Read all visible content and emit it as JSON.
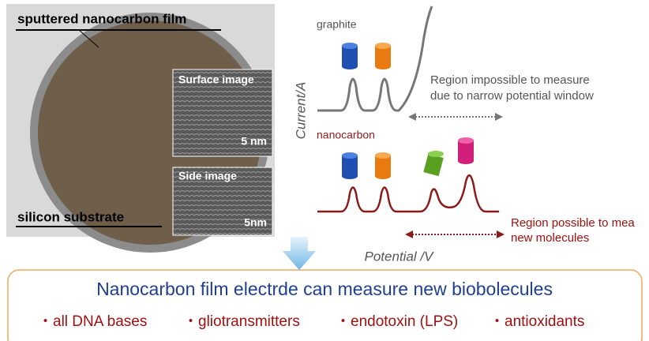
{
  "photo": {
    "film_label": "sputtered nanocarbon film",
    "surface_label": "Surface image",
    "surface_scale": "5 nm",
    "side_label": "Side image",
    "side_scale": "5nm",
    "substrate_label": "silicon substrate"
  },
  "voltammogram": {
    "graphite_label": "graphite",
    "y_axis_label": "Current/A",
    "impossible_note": [
      "Region impossible to measure",
      "due to narrow potential window"
    ],
    "nanocarbon_label": "nanocarbon",
    "possible_note": [
      "Region possible to mea",
      "new molecules"
    ],
    "x_axis_label": "Potential /V"
  },
  "summary": {
    "title": "Nanocarbon film electrde can measure new biobolecules",
    "items": [
      "・all DNA bases",
      "・gliotransmitters",
      "・endotoxin (LPS)",
      "・antioxidants"
    ]
  }
}
